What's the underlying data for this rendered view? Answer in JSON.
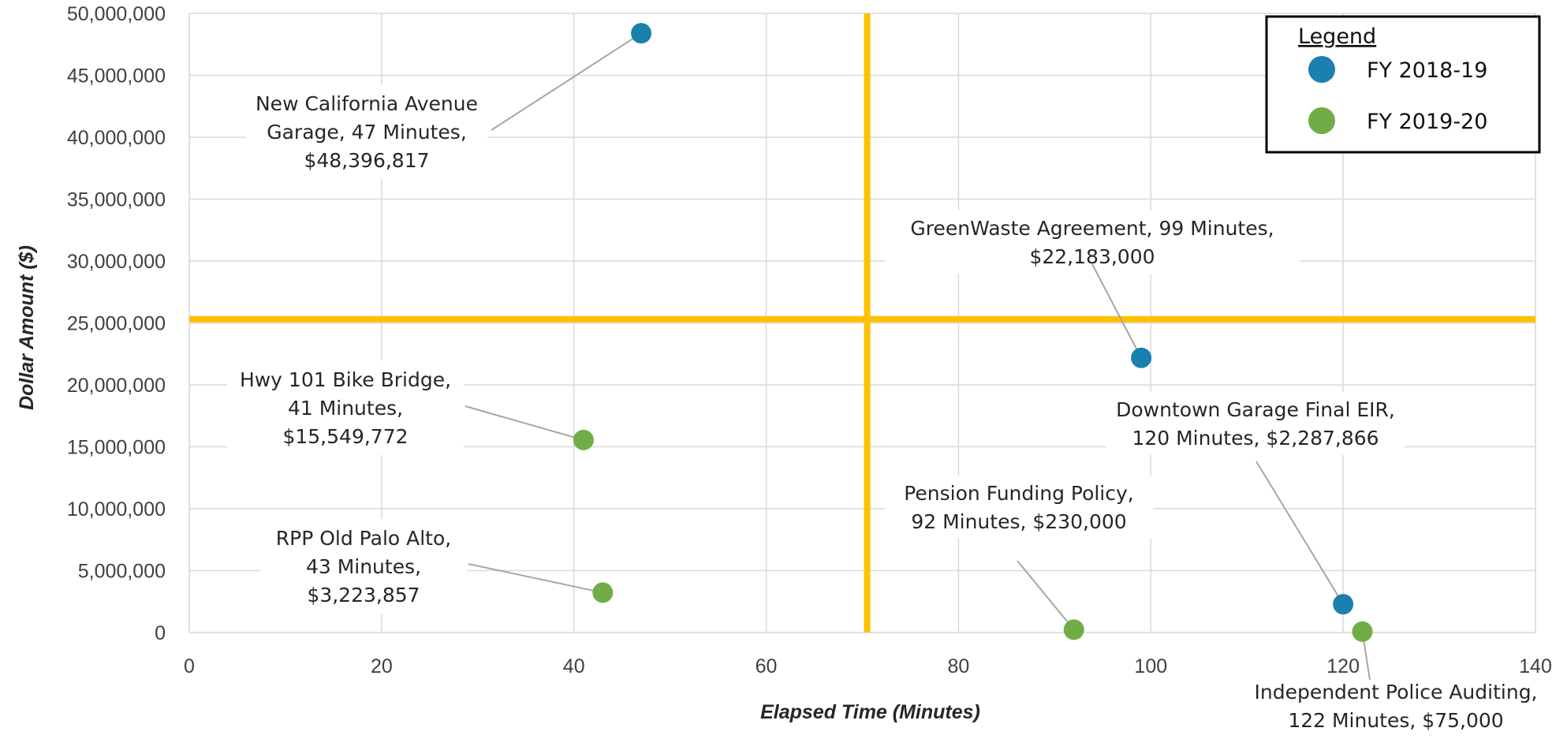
{
  "chart_data": {
    "type": "scatter",
    "xlabel": "Elapsed Time (Minutes)",
    "ylabel": "Dollar Amount ($)",
    "xlim": [
      0,
      140
    ],
    "ylim": [
      0,
      50000000
    ],
    "x_ticks": [
      "0",
      "20",
      "40",
      "60",
      "80",
      "100",
      "120",
      "140"
    ],
    "y_ticks": [
      "0",
      "5,000,000",
      "10,000,000",
      "15,000,000",
      "20,000,000",
      "25,000,000",
      "30,000,000",
      "35,000,000",
      "40,000,000",
      "45,000,000",
      "50,000,000"
    ],
    "grid": true,
    "legend": {
      "title": "Legend",
      "position": "top-right"
    },
    "reference_lines": {
      "x": 70.5,
      "y": 25300000,
      "color": "#FFC000"
    },
    "series": [
      {
        "name": "FY 2018-19",
        "color": "#1B7FAF",
        "points": [
          {
            "x": 47,
            "y": 48396817,
            "label": [
              "New California Avenue",
              "Garage, 47 Minutes,",
              "$48,396,817"
            ]
          },
          {
            "x": 99,
            "y": 22183000,
            "label": [
              "GreenWaste Agreement, 99 Minutes,",
              "$22,183,000"
            ]
          },
          {
            "x": 120,
            "y": 2287866,
            "label": [
              "Downtown Garage Final EIR,",
              "120 Minutes,  $2,287,866"
            ]
          }
        ]
      },
      {
        "name": "FY 2019-20",
        "color": "#70AD47",
        "points": [
          {
            "x": 41,
            "y": 15549772,
            "label": [
              "Hwy 101 Bike Bridge,",
              "41 Minutes,",
              "$15,549,772"
            ]
          },
          {
            "x": 43,
            "y": 3223857,
            "label": [
              "RPP Old Palo Alto,",
              "43 Minutes,",
              "$3,223,857"
            ]
          },
          {
            "x": 92,
            "y": 230000,
            "label": [
              "Pension Funding Policy,",
              "92 Minutes,  $230,000"
            ]
          },
          {
            "x": 122,
            "y": 75000,
            "label": [
              "Independent Police Auditing,",
              "122 Minutes,  $75,000"
            ]
          }
        ]
      }
    ]
  }
}
